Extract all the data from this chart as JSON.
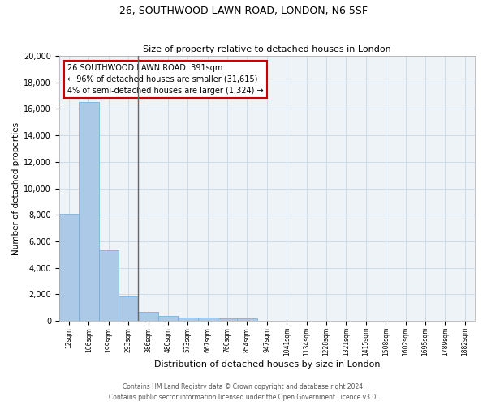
{
  "title_line1": "26, SOUTHWOOD LAWN ROAD, LONDON, N6 5SF",
  "title_line2": "Size of property relative to detached houses in London",
  "xlabel": "Distribution of detached houses by size in London",
  "ylabel": "Number of detached properties",
  "bar_color": "#adc9e8",
  "bar_edge_color": "#6aaad4",
  "grid_color": "#c8d8e8",
  "background_color": "#eef3f8",
  "annotation_box_color": "#cc0000",
  "vline_color": "#666666",
  "categories": [
    "12sqm",
    "106sqm",
    "199sqm",
    "293sqm",
    "386sqm",
    "480sqm",
    "573sqm",
    "667sqm",
    "760sqm",
    "854sqm",
    "947sqm",
    "1041sqm",
    "1134sqm",
    "1228sqm",
    "1321sqm",
    "1415sqm",
    "1508sqm",
    "1602sqm",
    "1695sqm",
    "1789sqm",
    "1882sqm"
  ],
  "values": [
    8100,
    16500,
    5300,
    1850,
    700,
    370,
    285,
    235,
    210,
    180,
    0,
    0,
    0,
    0,
    0,
    0,
    0,
    0,
    0,
    0,
    0
  ],
  "ylim": [
    0,
    20000
  ],
  "yticks": [
    0,
    2000,
    4000,
    6000,
    8000,
    10000,
    12000,
    14000,
    16000,
    18000,
    20000
  ],
  "property_label": "26 SOUTHWOOD LAWN ROAD: 391sqm",
  "pct_smaller": "96% of detached houses are smaller (31,615)",
  "pct_larger": "4% of semi-detached houses are larger (1,324)",
  "vline_position": 3.5,
  "footer_line1": "Contains HM Land Registry data © Crown copyright and database right 2024.",
  "footer_line2": "Contains public sector information licensed under the Open Government Licence v3.0."
}
